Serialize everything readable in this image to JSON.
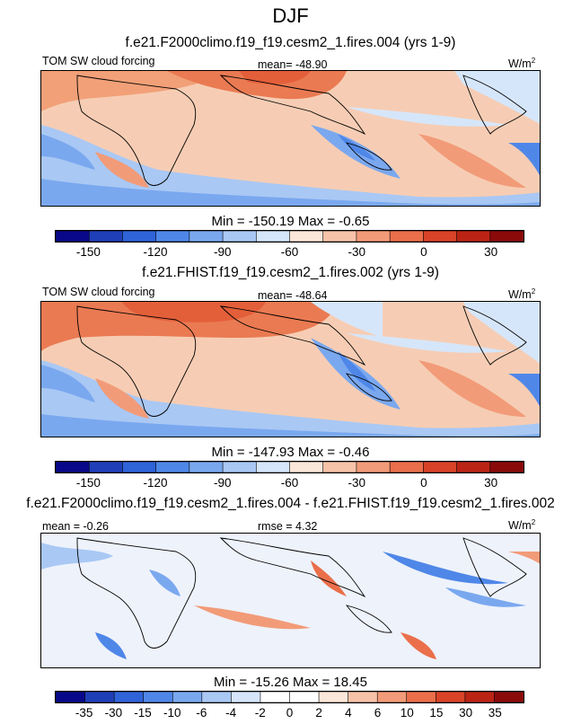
{
  "title": "DJF",
  "panels": [
    {
      "title": "f.e21.F2000climo.f19_f19.cesm2_1.fires.004 (yrs 1-9)",
      "left_label": "TOM SW cloud forcing",
      "center_label": "mean= -48.90",
      "units": "W/m",
      "units_exp": "2",
      "minmax": "Min = -150.19 Max =  -0.65",
      "colorbar": {
        "colors": [
          "#08088a",
          "#1f3fb8",
          "#2f63d8",
          "#4f87e8",
          "#7aa8ef",
          "#a9c8f4",
          "#d6e6fa",
          "#fbe7da",
          "#f7c3a8",
          "#f29b78",
          "#ea6f4a",
          "#d94327",
          "#bb2414",
          "#8a0a0a"
        ],
        "labels": [
          "-150",
          "-120",
          "-90",
          "-60",
          "-30",
          "0",
          "30"
        ]
      }
    },
    {
      "title": "f.e21.FHIST.f19_f19.cesm2_1.fires.002 (yrs 1-9)",
      "left_label": "TOM SW cloud forcing",
      "center_label": "mean= -48.64",
      "units": "W/m",
      "units_exp": "2",
      "minmax": "Min = -147.93 Max =  -0.46",
      "colorbar": {
        "colors": [
          "#08088a",
          "#1f3fb8",
          "#2f63d8",
          "#4f87e8",
          "#7aa8ef",
          "#a9c8f4",
          "#d6e6fa",
          "#fbe7da",
          "#f7c3a8",
          "#f29b78",
          "#ea6f4a",
          "#d94327",
          "#bb2414",
          "#8a0a0a"
        ],
        "labels": [
          "-150",
          "-120",
          "-90",
          "-60",
          "-30",
          "0",
          "30"
        ]
      }
    },
    {
      "title": "f.e21.F2000climo.f19_f19.cesm2_1.fires.004 - f.e21.FHIST.f19_f19.cesm2_1.fires.002",
      "left_label": "mean =  -0.26",
      "center_label": "rmse =  4.32",
      "units": "W/m",
      "units_exp": "2",
      "minmax": "Min = -15.26 Max =  18.45",
      "colorbar": {
        "colors": [
          "#08088a",
          "#1f3fb8",
          "#2f63d8",
          "#4f87e8",
          "#7aa8ef",
          "#a9c8f4",
          "#d6e6fa",
          "#ffffff",
          "#ffffff",
          "#fbe7da",
          "#f7c3a8",
          "#f29b78",
          "#ea6f4a",
          "#d94327",
          "#bb2414",
          "#8a0a0a"
        ],
        "labels": [
          "-35",
          "-30",
          "-15",
          "-10",
          "-6",
          "-4",
          "-2",
          "0",
          "2",
          "4",
          "6",
          "10",
          "15",
          "30",
          "35"
        ]
      }
    }
  ]
}
